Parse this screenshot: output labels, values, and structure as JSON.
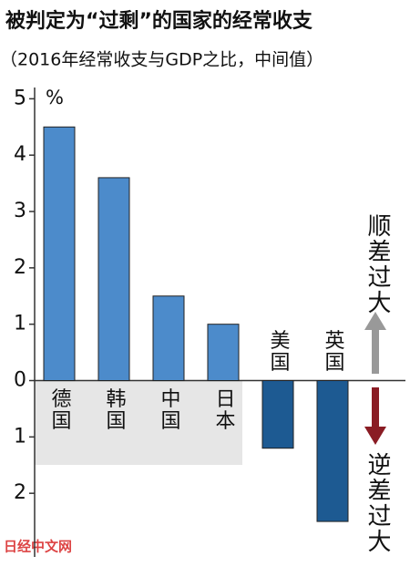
{
  "chart_data": {
    "type": "bar",
    "title": "被判定为“过剩”的国家的经常收支",
    "subtitle": "（2016年经常收支与GDP之比，中间值）",
    "y_unit": "%",
    "categories": [
      "德国",
      "韩国",
      "中国",
      "日本",
      "美国",
      "英国"
    ],
    "values": [
      4.5,
      3.6,
      1.5,
      1.0,
      -1.2,
      -2.5
    ],
    "colors": [
      "#4c8bcb",
      "#4c8bcb",
      "#4c8bcb",
      "#4c8bcb",
      "#1d5a92",
      "#1d5a92"
    ],
    "ylim": [
      -3,
      5.2
    ],
    "yticks": [
      5,
      4,
      3,
      2,
      1,
      0,
      {
        "value": -1,
        "label": "1"
      },
      {
        "value": -2,
        "label": "2"
      }
    ],
    "annotations": {
      "surplus": "顺差过大",
      "deficit": "逆差过大"
    },
    "watermark": "日经中文网"
  }
}
